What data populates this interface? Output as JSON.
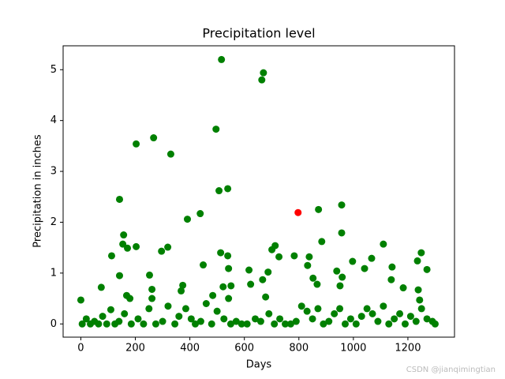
{
  "chart_data": {
    "type": "scatter",
    "title": "Precipitation level",
    "x_label": "Days",
    "y_label": "Precipitation in inches",
    "xlim": [
      -65,
      1371
    ],
    "ylim": [
      -0.26,
      5.47
    ],
    "xticks": [
      0,
      200,
      400,
      600,
      800,
      1000,
      1200
    ],
    "yticks": [
      0,
      1,
      2,
      3,
      4,
      5
    ],
    "series": [
      {
        "color": "#008000",
        "x": [
          0,
          75,
          113,
          142,
          142,
          157,
          154,
          168,
          171,
          180,
          203,
          203,
          252,
          261,
          261,
          267,
          296,
          319,
          330,
          368,
          374,
          391,
          438,
          449,
          484,
          496,
          507,
          513,
          516,
          522,
          539,
          539,
          542,
          551,
          542,
          617,
          623,
          664,
          670,
          667,
          678,
          687,
          701,
          713,
          727,
          783,
          838,
          832,
          852,
          867,
          872,
          884,
          939,
          951,
          957,
          957,
          959,
          997,
          1041,
          1067,
          1110,
          1139,
          1142,
          1183,
          1235,
          1249,
          1270,
          1238,
          1243,
          5,
          20,
          35,
          50,
          65,
          80,
          95,
          110,
          125,
          140,
          160,
          185,
          210,
          230,
          250,
          275,
          300,
          320,
          345,
          360,
          385,
          405,
          420,
          440,
          460,
          480,
          500,
          525,
          550,
          570,
          590,
          610,
          640,
          660,
          690,
          710,
          730,
          750,
          770,
          790,
          810,
          830,
          850,
          870,
          890,
          910,
          930,
          950,
          970,
          990,
          1010,
          1030,
          1050,
          1070,
          1090,
          1110,
          1130,
          1150,
          1170,
          1190,
          1210,
          1230,
          1250,
          1270,
          1290,
          1300
        ],
        "values": [
          0.47,
          0.72,
          1.34,
          2.45,
          0.95,
          1.75,
          1.57,
          0.56,
          1.49,
          0.5,
          3.54,
          1.52,
          0.96,
          0.68,
          0.5,
          3.66,
          1.43,
          1.51,
          3.34,
          0.65,
          0.76,
          2.06,
          2.17,
          1.16,
          0.56,
          3.83,
          2.62,
          1.4,
          5.2,
          0.73,
          2.66,
          1.34,
          1.09,
          0.75,
          0.5,
          1.06,
          0.78,
          4.8,
          4.94,
          0.87,
          0.53,
          1.02,
          1.46,
          1.54,
          1.32,
          1.34,
          1.32,
          1.15,
          0.9,
          0.78,
          2.25,
          1.62,
          1.04,
          0.75,
          2.34,
          1.79,
          0.92,
          1.23,
          1.09,
          1.29,
          1.57,
          0.87,
          1.12,
          0.71,
          1.24,
          1.4,
          1.07,
          0.67,
          0.47,
          0,
          0.1,
          0,
          0.05,
          0,
          0.15,
          0,
          0.28,
          0,
          0.05,
          0.2,
          0,
          0.1,
          0,
          0.3,
          0,
          0.05,
          0.35,
          0,
          0.15,
          0.3,
          0.1,
          0,
          0.05,
          0.4,
          0,
          0.25,
          0.1,
          0,
          0.05,
          0,
          0,
          0.1,
          0.05,
          0.2,
          0,
          0.1,
          0,
          0,
          0.05,
          0.35,
          0.25,
          0.1,
          0.3,
          0,
          0.05,
          0.2,
          0.3,
          0,
          0.1,
          0,
          0.15,
          0.3,
          0.2,
          0.05,
          0.35,
          0,
          0.1,
          0.2,
          0,
          0.15,
          0.05,
          0.3,
          0.1,
          0.05,
          0
        ]
      },
      {
        "color": "#ff0000",
        "x": [
          797
        ],
        "values": [
          2.19
        ]
      }
    ]
  },
  "watermark": "CSDN @jianqimingtian"
}
